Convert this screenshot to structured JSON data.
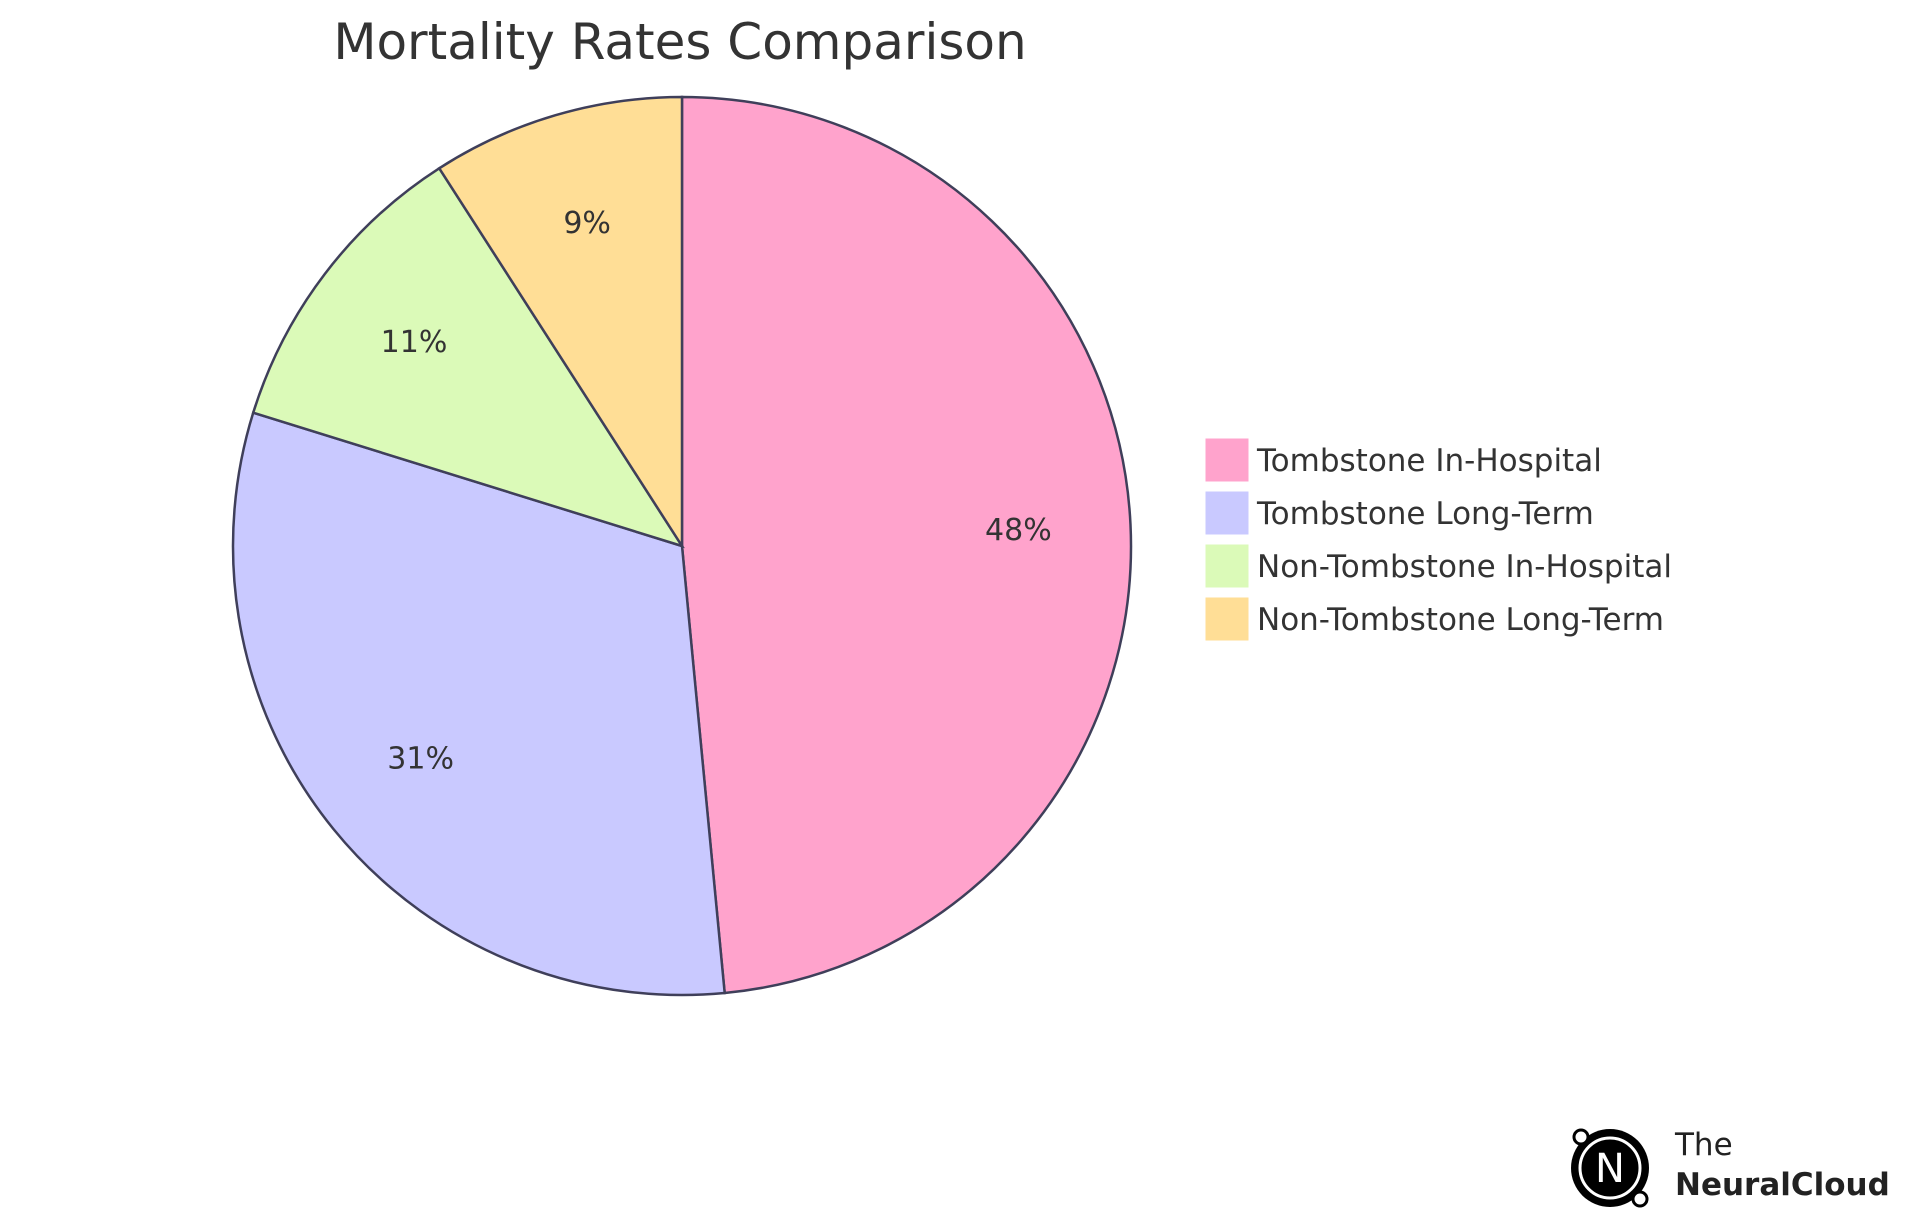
{
  "chart_data": {
    "type": "pie",
    "title": "Mortality Rates Comparison",
    "slices": [
      {
        "label": "Tombstone In-Hospital",
        "value": 48,
        "display": "48%",
        "color": "#FFA3CC"
      },
      {
        "label": "Tombstone Long-Term",
        "value": 31,
        "display": "31%",
        "color": "#C9C9FF"
      },
      {
        "label": "Non-Tombstone In-Hospital",
        "value": 11,
        "display": "11%",
        "color": "#DBFAB8"
      },
      {
        "label": "Non-Tombstone Long-Term",
        "value": 9,
        "display": "9%",
        "color": "#FFDE96"
      }
    ],
    "stroke_color": "#3F3F5A",
    "legend_position": "right",
    "start_angle": "top",
    "direction": "clockwise"
  },
  "branding": {
    "line1": "The",
    "line2": "NeuralCloud",
    "logo_letter": "N"
  }
}
